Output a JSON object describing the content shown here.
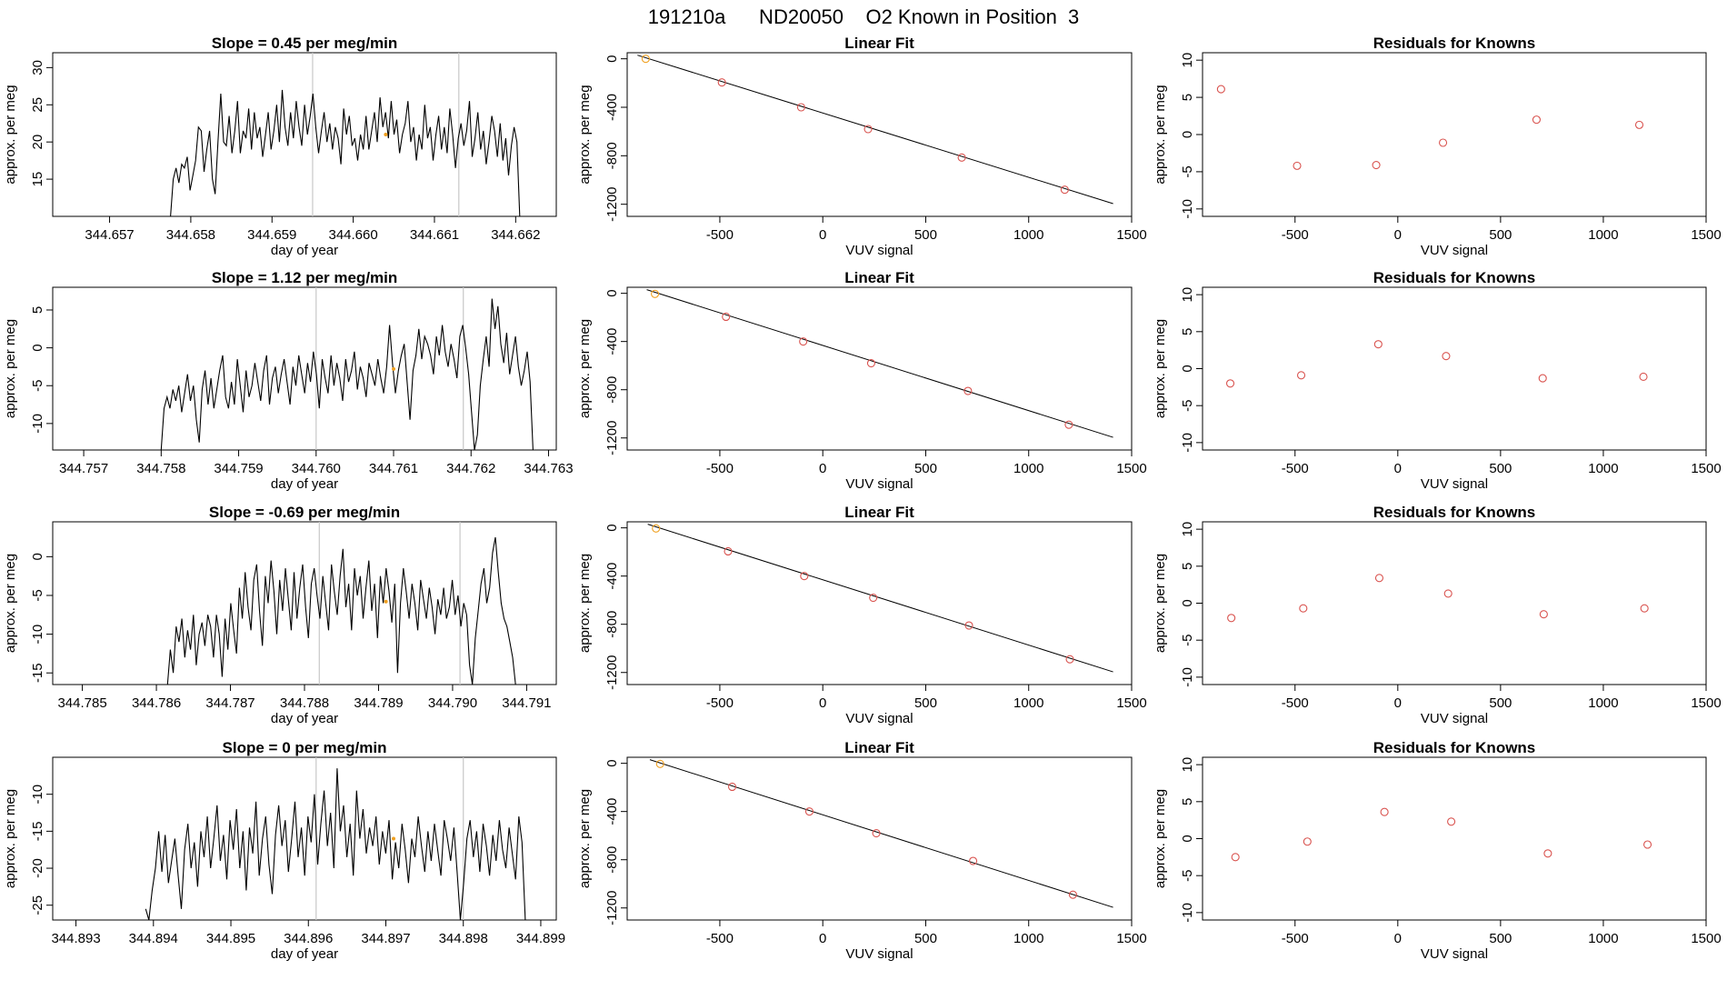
{
  "page_title": "191210a      ND20050    O2 Known in Position  3",
  "colors": {
    "trace": "#000000",
    "known_point": "#d9534f",
    "highlight_point": "#f0a020",
    "marker_line": "#c8c8c8",
    "fit_line": "#000000"
  },
  "chart_data": [
    {
      "type": "line",
      "title": "Slope =  0.45  per meg/min",
      "xlabel": "day of year",
      "ylabel": "approx. per meg",
      "xlim": [
        344.6563,
        344.6625
      ],
      "ylim": [
        10,
        32
      ],
      "xticks": [
        "344.657",
        "344.658",
        "344.659",
        "344.660",
        "344.661",
        "344.662"
      ],
      "xtick_values": [
        344.657,
        344.658,
        344.659,
        344.66,
        344.661,
        344.662
      ],
      "yticks": [
        "15",
        "20",
        "25",
        "30"
      ],
      "ytick_values": [
        15,
        20,
        25,
        30
      ],
      "x_start": 344.65775,
      "x_end": 344.66205,
      "y_values": [
        10,
        15,
        16.5,
        14.5,
        17,
        16.5,
        18,
        13.5,
        15.5,
        17.5,
        22,
        21.5,
        16,
        19,
        21.5,
        15,
        13,
        20,
        26.5,
        20,
        19.5,
        23.5,
        18.5,
        21.5,
        25.5,
        18.5,
        21.5,
        20.5,
        24.5,
        19,
        24,
        20.5,
        22,
        18,
        21,
        24,
        19,
        21.5,
        25,
        20,
        27,
        22,
        19.5,
        24,
        20.5,
        25.5,
        22,
        19.5,
        25,
        21,
        23.5,
        26.5,
        22,
        18.5,
        21.5,
        24,
        20,
        22.5,
        19,
        22,
        20.5,
        17,
        24.5,
        21,
        23.5,
        19.5,
        20.5,
        17.5,
        21,
        19,
        23.5,
        19,
        21.5,
        24,
        20,
        26,
        22,
        24,
        20.5,
        25.5,
        21,
        23,
        18.5,
        21,
        22.5,
        25.5,
        20,
        22,
        17.5,
        21,
        19,
        25,
        20.5,
        22,
        17.5,
        21,
        23.5,
        19,
        22,
        18.5,
        24.5,
        21,
        16.5,
        20.5,
        22.5,
        19.5,
        21.5,
        25.5,
        18,
        20.5,
        24,
        19,
        21.5,
        17,
        20,
        23.5,
        21.5,
        18,
        22.5,
        17.5,
        20.5,
        15.5,
        19.5,
        22,
        20,
        10
      ],
      "vlines": [
        344.6595,
        344.6613
      ],
      "highlight": [
        344.6604,
        21
      ]
    },
    {
      "type": "scatter",
      "title": "Linear Fit",
      "xlabel": "VUV signal",
      "ylabel": "approx. per meg",
      "xlim": [
        -950,
        1500
      ],
      "ylim": [
        -1300,
        50
      ],
      "xticks": [
        "-500",
        "0",
        "500",
        "1000",
        "1500"
      ],
      "xtick_values": [
        -500,
        0,
        500,
        1000,
        1500
      ],
      "yticks": [
        "-1200",
        "-800",
        "-400",
        "0"
      ],
      "ytick_values": [
        -1200,
        -800,
        -400,
        0
      ],
      "x": [
        -860,
        -490,
        -105,
        220,
        675,
        1175
      ],
      "y": [
        0,
        -195,
        -400,
        -580,
        -815,
        -1080
      ],
      "fit": [
        [
          -900,
          30
        ],
        [
          1410,
          -1195
        ]
      ],
      "highlight_index": 0
    },
    {
      "type": "scatter",
      "title": "Residuals for Knowns",
      "xlabel": "VUV signal",
      "ylabel": "approx. per meg",
      "xlim": [
        -950,
        1500
      ],
      "ylim": [
        -11,
        11
      ],
      "xticks": [
        "-500",
        "0",
        "500",
        "1000",
        "1500"
      ],
      "xtick_values": [
        -500,
        0,
        500,
        1000,
        1500
      ],
      "yticks": [
        "-10",
        "-5",
        "0",
        "5",
        "10"
      ],
      "ytick_values": [
        -10,
        -5,
        0,
        5,
        10
      ],
      "x": [
        -860,
        -490,
        -105,
        220,
        675,
        1175
      ],
      "y": [
        6.1,
        -4.2,
        -4.1,
        -1.1,
        2.0,
        1.3
      ]
    },
    {
      "type": "line",
      "title": "Slope =  1.12  per meg/min",
      "xlabel": "day of year",
      "ylabel": "approx. per meg",
      "xlim": [
        344.7566,
        344.7631
      ],
      "ylim": [
        -13.5,
        8
      ],
      "xticks": [
        "344.757",
        "344.758",
        "344.759",
        "344.760",
        "344.761",
        "344.762",
        "344.763"
      ],
      "xtick_values": [
        344.757,
        344.758,
        344.759,
        344.76,
        344.761,
        344.762,
        344.763
      ],
      "yticks": [
        "-10",
        "-5",
        "0",
        "5"
      ],
      "ytick_values": [
        -10,
        -5,
        0,
        5
      ],
      "x_start": 344.758,
      "x_end": 344.7628,
      "y_values": [
        -13.5,
        -8,
        -6.5,
        -8,
        -5.5,
        -7,
        -5,
        -8.5,
        -6,
        -3.5,
        -7,
        -5,
        -9.5,
        -12.5,
        -5.5,
        -3,
        -7.5,
        -4,
        -8,
        -5.5,
        -3,
        -1,
        -6.5,
        -8,
        -4.5,
        -7.5,
        -1.5,
        -5,
        -8.5,
        -3,
        -6.5,
        -5,
        -2,
        -4.5,
        -7,
        -3,
        -1,
        -7.5,
        -4,
        -2.5,
        -6,
        -3.5,
        -1.5,
        -4.5,
        -7.5,
        -2.5,
        -5,
        -1,
        -3.5,
        -6,
        -2,
        -4.5,
        -0.5,
        -3.5,
        -8,
        -1.5,
        -4,
        -6,
        -1,
        -5,
        -2,
        -4,
        -7,
        -1.5,
        -4.5,
        -3,
        -0.5,
        -5.5,
        -2.5,
        -4,
        -6.5,
        -2,
        -3.5,
        -5,
        -1.5,
        -4,
        -6,
        -2.5,
        3,
        -2,
        -6,
        -3,
        -1,
        0.5,
        -4.5,
        -9.5,
        -3,
        -1,
        2.5,
        -1.5,
        1.5,
        0.5,
        -1,
        -3.5,
        1.5,
        -1,
        3,
        -0.5,
        -2.5,
        0.5,
        -1.5,
        -4,
        1.5,
        3,
        0,
        -3.5,
        -8.5,
        -13.5,
        -11.5,
        -5,
        -1.5,
        1.5,
        -2.5,
        6.5,
        2.5,
        5.5,
        0.5,
        -2,
        2,
        -3.5,
        -1,
        1.5,
        -2.5,
        -5,
        -3,
        -0.5,
        -4.5,
        -13.5
      ],
      "vlines": [
        344.76,
        344.7619
      ],
      "highlight": [
        344.761,
        -2.8
      ]
    },
    {
      "type": "scatter",
      "title": "Linear Fit",
      "xlabel": "VUV signal",
      "ylabel": "approx. per meg",
      "xlim": [
        -950,
        1500
      ],
      "ylim": [
        -1300,
        50
      ],
      "xticks": [
        "-500",
        "0",
        "500",
        "1000",
        "1500"
      ],
      "xtick_values": [
        -500,
        0,
        500,
        1000,
        1500
      ],
      "yticks": [
        "-1200",
        "-800",
        "-400",
        "0"
      ],
      "ytick_values": [
        -1200,
        -800,
        -400,
        0
      ],
      "x": [
        -815,
        -470,
        -95,
        235,
        705,
        1195
      ],
      "y": [
        -5,
        -195,
        -400,
        -580,
        -810,
        -1090
      ],
      "fit": [
        [
          -855,
          30
        ],
        [
          1410,
          -1195
        ]
      ],
      "highlight_index": 0
    },
    {
      "type": "scatter",
      "title": "Residuals for Knowns",
      "xlabel": "VUV signal",
      "ylabel": "approx. per meg",
      "xlim": [
        -950,
        1500
      ],
      "ylim": [
        -11,
        11
      ],
      "xticks": [
        "-500",
        "0",
        "500",
        "1000",
        "1500"
      ],
      "xtick_values": [
        -500,
        0,
        500,
        1000,
        1500
      ],
      "yticks": [
        "-10",
        "-5",
        "0",
        "5",
        "10"
      ],
      "ytick_values": [
        -10,
        -5,
        0,
        5,
        10
      ],
      "x": [
        -815,
        -470,
        -95,
        235,
        705,
        1195
      ],
      "y": [
        -2.0,
        -0.9,
        3.3,
        1.7,
        -1.3,
        -1.1
      ]
    },
    {
      "type": "line",
      "title": "Slope =  -0.69  per meg/min",
      "xlabel": "day of year",
      "ylabel": "approx. per meg",
      "xlim": [
        344.7846,
        344.7914
      ],
      "ylim": [
        -16.5,
        4.5
      ],
      "xticks": [
        "344.785",
        "344.786",
        "344.787",
        "344.788",
        "344.789",
        "344.790",
        "344.791"
      ],
      "xtick_values": [
        344.785,
        344.786,
        344.787,
        344.788,
        344.789,
        344.79,
        344.791
      ],
      "yticks": [
        "-15",
        "-10",
        "-5",
        "0"
      ],
      "ytick_values": [
        -15,
        -10,
        -5,
        0
      ],
      "x_start": 344.78615,
      "x_end": 344.79085,
      "y_values": [
        -16.5,
        -12,
        -15,
        -9,
        -11,
        -8,
        -13,
        -9.5,
        -12,
        -7.5,
        -14,
        -10,
        -8.5,
        -11.5,
        -7.5,
        -9,
        -13,
        -7.5,
        -10,
        -15.5,
        -8,
        -12,
        -6,
        -9.5,
        -12.5,
        -4,
        -8,
        -2,
        -6.5,
        -9.5,
        -3,
        -1,
        -7,
        -11.5,
        -2.5,
        -6,
        -0.5,
        -4.5,
        -10,
        -3,
        -7,
        -1.5,
        -5.5,
        -9.5,
        -2,
        -8,
        -4,
        -1,
        -6.5,
        -10.5,
        -3.5,
        -1.5,
        -5,
        -8,
        -2.5,
        -6,
        -9.5,
        -1,
        -4.5,
        -7.5,
        -2.5,
        1,
        -6.5,
        -3.5,
        -9.5,
        -1.5,
        -5,
        -2.5,
        -8,
        -4,
        -0.5,
        -7,
        -3.5,
        -10.5,
        -2.5,
        -6,
        -1.5,
        -4.5,
        -8.5,
        -3.5,
        -15,
        -6,
        -1.5,
        -4.5,
        -8,
        -3.5,
        -6,
        -9.5,
        -3,
        -5.5,
        -8,
        -4,
        -6.5,
        -10,
        -5.5,
        -7.5,
        -4,
        -8,
        -6.5,
        -3,
        -7.5,
        -5,
        -9,
        -6,
        -7.5,
        -14,
        -16.5,
        -10.5,
        -7,
        -3.5,
        -1.5,
        -6,
        -4,
        0.5,
        2.5,
        -2,
        -6,
        -8,
        -9,
        -11,
        -13,
        -16.5
      ],
      "vlines": [
        344.7882,
        344.7901
      ],
      "highlight": [
        344.7891,
        -5.8
      ]
    },
    {
      "type": "scatter",
      "title": "Linear Fit",
      "xlabel": "VUV signal",
      "ylabel": "approx. per meg",
      "xlim": [
        -950,
        1500
      ],
      "ylim": [
        -1300,
        50
      ],
      "xticks": [
        "-500",
        "0",
        "500",
        "1000",
        "1500"
      ],
      "xtick_values": [
        -500,
        0,
        500,
        1000,
        1500
      ],
      "yticks": [
        "-1200",
        "-800",
        "-400",
        "0"
      ],
      "ytick_values": [
        -1200,
        -800,
        -400,
        0
      ],
      "x": [
        -810,
        -460,
        -90,
        245,
        710,
        1200
      ],
      "y": [
        -5,
        -195,
        -400,
        -580,
        -810,
        -1090
      ],
      "fit": [
        [
          -850,
          30
        ],
        [
          1410,
          -1195
        ]
      ],
      "highlight_index": 0
    },
    {
      "type": "scatter",
      "title": "Residuals for Knowns",
      "xlabel": "VUV signal",
      "ylabel": "approx. per meg",
      "xlim": [
        -950,
        1500
      ],
      "ylim": [
        -11,
        11
      ],
      "xticks": [
        "-500",
        "0",
        "500",
        "1000",
        "1500"
      ],
      "xtick_values": [
        -500,
        0,
        500,
        1000,
        1500
      ],
      "yticks": [
        "-10",
        "-5",
        "0",
        "5",
        "10"
      ],
      "ytick_values": [
        -10,
        -5,
        0,
        5,
        10
      ],
      "x": [
        -810,
        -460,
        -90,
        245,
        710,
        1200
      ],
      "y": [
        -2.0,
        -0.7,
        3.4,
        1.3,
        -1.5,
        -0.7
      ]
    },
    {
      "type": "line",
      "title": "Slope =  0  per meg/min",
      "xlabel": "day of year",
      "ylabel": "approx. per meg",
      "xlim": [
        344.8927,
        344.8992
      ],
      "ylim": [
        -27,
        -5
      ],
      "xticks": [
        "344.893",
        "344.894",
        "344.895",
        "344.896",
        "344.897",
        "344.898",
        "344.899"
      ],
      "xtick_values": [
        344.893,
        344.894,
        344.895,
        344.896,
        344.897,
        344.898,
        344.899
      ],
      "yticks": [
        "-25",
        "-20",
        "-15",
        "-10"
      ],
      "ytick_values": [
        -25,
        -20,
        -15,
        -10
      ],
      "x_start": 344.8939,
      "x_end": 344.8988,
      "y_values": [
        -25.5,
        -27,
        -23,
        -20,
        -15,
        -20.5,
        -15.5,
        -22,
        -19,
        -16,
        -21,
        -25.5,
        -17.5,
        -14,
        -20,
        -16.5,
        -22.5,
        -15,
        -18.5,
        -13,
        -20,
        -16,
        -11.5,
        -19,
        -15.5,
        -21.5,
        -13.5,
        -17.5,
        -12,
        -20,
        -15,
        -23,
        -14.5,
        -18,
        -11,
        -21,
        -16,
        -13,
        -19.5,
        -23.5,
        -15.5,
        -11.5,
        -17,
        -13.5,
        -20.5,
        -16,
        -11,
        -18.5,
        -14.5,
        -21,
        -13,
        -16.5,
        -10,
        -19.5,
        -14,
        -9.5,
        -17,
        -12.5,
        -20,
        -6.5,
        -15,
        -11.5,
        -18.5,
        -14,
        -21,
        -9.5,
        -16,
        -12,
        -18,
        -14.5,
        -17,
        -13,
        -19.5,
        -15,
        -18,
        -13.5,
        -21.5,
        -16.5,
        -20,
        -14,
        -17.5,
        -22,
        -16,
        -18.5,
        -13,
        -17,
        -20.5,
        -15,
        -19,
        -14,
        -17.5,
        -21,
        -13.5,
        -16,
        -19,
        -14.5,
        -20.5,
        -27,
        -22,
        -16,
        -13.5,
        -18.5,
        -15,
        -20.5,
        -14,
        -17,
        -21,
        -15.5,
        -19,
        -13.5,
        -17.5,
        -20,
        -14.5,
        -18,
        -21.5,
        -13,
        -16.5,
        -27
      ],
      "vlines": [
        344.8961,
        344.898
      ],
      "highlight": [
        344.8971,
        -16
      ]
    },
    {
      "type": "scatter",
      "title": "Linear Fit",
      "xlabel": "VUV signal",
      "ylabel": "approx. per meg",
      "xlim": [
        -950,
        1500
      ],
      "ylim": [
        -1300,
        50
      ],
      "xticks": [
        "-500",
        "0",
        "500",
        "1000",
        "1500"
      ],
      "xtick_values": [
        -500,
        0,
        500,
        1000,
        1500
      ],
      "yticks": [
        "-1200",
        "-800",
        "-400",
        "0"
      ],
      "ytick_values": [
        -1200,
        -800,
        -400,
        0
      ],
      "x": [
        -790,
        -440,
        -65,
        260,
        730,
        1215
      ],
      "y": [
        -5,
        -195,
        -400,
        -580,
        -810,
        -1090
      ],
      "fit": [
        [
          -840,
          30
        ],
        [
          1410,
          -1195
        ]
      ],
      "highlight_index": 0
    },
    {
      "type": "scatter",
      "title": "Residuals for Knowns",
      "xlabel": "VUV signal",
      "ylabel": "approx. per meg",
      "xlim": [
        -950,
        1500
      ],
      "ylim": [
        -11,
        11
      ],
      "xticks": [
        "-500",
        "0",
        "500",
        "1000",
        "1500"
      ],
      "xtick_values": [
        -500,
        0,
        500,
        1000,
        1500
      ],
      "yticks": [
        "-10",
        "-5",
        "0",
        "5",
        "10"
      ],
      "ytick_values": [
        -10,
        -5,
        0,
        5,
        10
      ],
      "x": [
        -790,
        -440,
        -65,
        260,
        730,
        1215
      ],
      "y": [
        -2.5,
        -0.4,
        3.6,
        2.3,
        -2.0,
        -0.8
      ]
    }
  ]
}
